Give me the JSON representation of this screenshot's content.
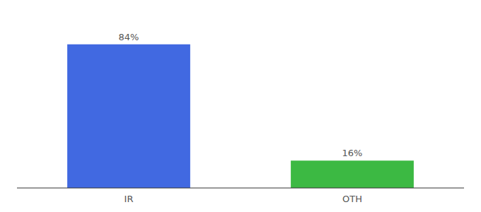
{
  "chart_data": {
    "type": "bar",
    "categories": [
      "IR",
      "OTH"
    ],
    "values": [
      84,
      16
    ],
    "value_labels": [
      "84%",
      "16%"
    ],
    "colors": [
      "#4169e1",
      "#3cb943"
    ],
    "ylim": [
      0,
      100
    ],
    "data_labels": true,
    "tick_labels": "x"
  }
}
